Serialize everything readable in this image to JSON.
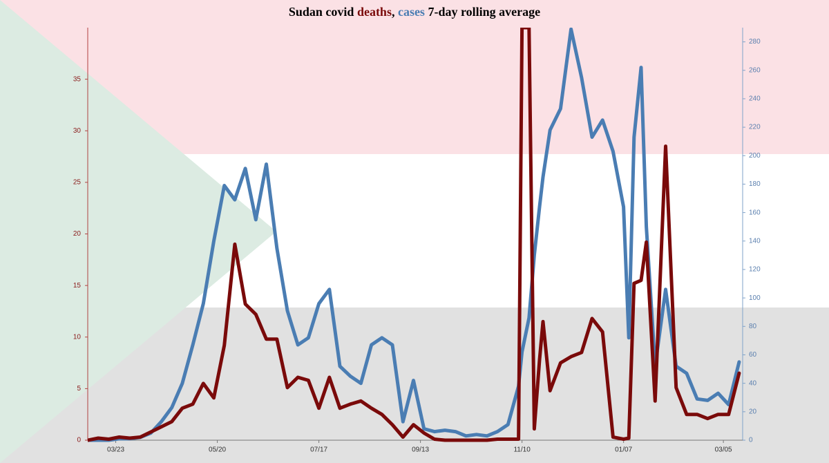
{
  "chart_data": {
    "type": "line",
    "title": [
      "Sudan covid ",
      ", ",
      " 7-day rolling average"
    ],
    "x": [
      "03/07",
      "03/13",
      "03/19",
      "03/25",
      "03/31",
      "04/06",
      "04/12",
      "04/18",
      "04/24",
      "04/30",
      "05/06",
      "05/12",
      "05/18",
      "05/24",
      "05/30",
      "06/05",
      "06/11",
      "06/17",
      "06/23",
      "06/29",
      "07/05",
      "07/11",
      "07/17",
      "07/23",
      "07/29",
      "08/04",
      "08/10",
      "08/16",
      "08/22",
      "08/28",
      "09/03",
      "09/09",
      "09/15",
      "09/21",
      "09/27",
      "10/03",
      "10/09",
      "10/15",
      "10/21",
      "10/27",
      "11/02",
      "11/08",
      "11/10",
      "11/14",
      "11/17",
      "11/20",
      "11/22",
      "11/26",
      "12/02",
      "12/08",
      "12/14",
      "12/20",
      "12/26",
      "01/01",
      "01/07",
      "01/10",
      "01/13",
      "01/17",
      "01/20",
      "01/25",
      "01/31",
      "02/06",
      "02/12",
      "02/18",
      "02/24",
      "03/02",
      "03/08",
      "03/14"
    ],
    "series": [
      {
        "name": "deaths",
        "color": "#7a0a0a",
        "axis": "y",
        "values": [
          0,
          0.2,
          0.1,
          0.3,
          0.2,
          0.3,
          0.8,
          1.3,
          1.8,
          3.1,
          3.5,
          5.5,
          4.1,
          9.2,
          19,
          13.2,
          12.2,
          9.8,
          9.8,
          5.1,
          6.1,
          5.8,
          3.1,
          6.1,
          3.1,
          3.5,
          3.8,
          3.1,
          2.5,
          1.5,
          0.3,
          1.5,
          0.7,
          0.1,
          0,
          0,
          0,
          0,
          0,
          0.1,
          0.1,
          0.1,
          40,
          40,
          1.1,
          7.8,
          11.5,
          4.8,
          7.5,
          8.1,
          8.5,
          11.8,
          10.5,
          0.3,
          0.1,
          0.2,
          15.2,
          15.5,
          19.2,
          3.8,
          28.5,
          5.1,
          2.5,
          2.5,
          2.1,
          2.5,
          2.5,
          6.5
        ]
      },
      {
        "name": "cases",
        "color": "#4a7db3",
        "axis": "y2",
        "values": [
          0,
          0,
          0,
          1,
          1,
          2,
          5,
          13,
          23,
          40,
          67,
          96,
          140,
          179,
          169,
          191,
          155,
          194,
          135,
          91,
          67,
          72,
          96,
          106,
          52,
          45,
          40,
          67,
          72,
          67,
          13,
          42,
          8,
          6,
          7,
          6,
          3,
          4,
          3,
          6,
          11,
          38,
          62,
          86,
          130,
          164,
          185,
          218,
          233,
          289,
          255,
          213,
          225,
          203,
          164,
          72,
          213,
          262,
          150,
          52,
          106,
          52,
          47,
          29,
          28,
          33,
          25,
          55
        ]
      }
    ],
    "xlim": [
      "03/07",
      "03/16"
    ],
    "xticks": [
      "03/23",
      "05/20",
      "07/17",
      "09/13",
      "11/10",
      "01/07",
      "03/05"
    ],
    "ylim": [
      0,
      40
    ],
    "yticks": [
      0,
      5,
      10,
      15,
      20,
      25,
      30,
      35
    ],
    "y2lim": [
      0,
      290
    ],
    "y2ticks": [
      0,
      20,
      40,
      60,
      80,
      100,
      120,
      140,
      160,
      180,
      200,
      220,
      240,
      260,
      280
    ]
  }
}
